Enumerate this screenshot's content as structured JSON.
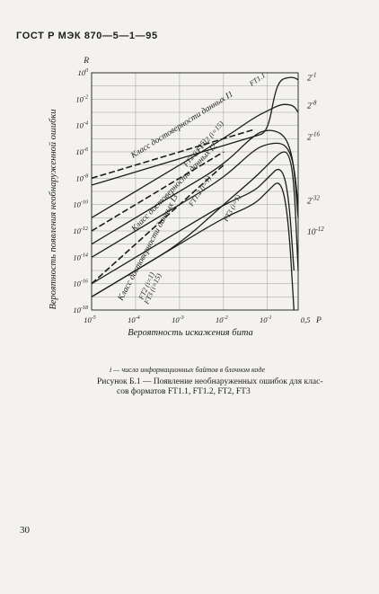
{
  "header": {
    "text": "ГОСТ Р МЭК 870—5—1—95"
  },
  "page_number": "30",
  "footnote": "i — число информационных байтов в блочном коде",
  "caption": {
    "line1": "Рисунок Б.1 — Появление необнаруженных ошибок для клас-",
    "line2": "сов форматов FT1.1, FT1.2, FT2, FT3"
  },
  "chart_data": {
    "type": "line",
    "xscale": "log",
    "yscale": "log",
    "xlabel": "Вероятность искажения бита",
    "xlabel_unit": "P",
    "ylabel": "Вероятность появления необнаруженной ошибки",
    "ylabel_unit": "R",
    "xlim": [
      1e-05,
      0.5
    ],
    "ylim": [
      1e-18,
      1
    ],
    "x_ticks": [
      {
        "label": "10",
        "exp": "-5"
      },
      {
        "label": "10",
        "exp": "-4"
      },
      {
        "label": "10",
        "exp": "-3"
      },
      {
        "label": "10",
        "exp": "-2"
      },
      {
        "label": "10",
        "exp": "-1"
      },
      {
        "label": "0,5",
        "exp": ""
      }
    ],
    "y_ticks": [
      {
        "label": "10",
        "exp": "0"
      },
      {
        "label": "10",
        "exp": "-2"
      },
      {
        "label": "10",
        "exp": "-4"
      },
      {
        "label": "10",
        "exp": "-6"
      },
      {
        "label": "10",
        "exp": "-8"
      },
      {
        "label": "10",
        "exp": "-10"
      },
      {
        "label": "10",
        "exp": "-12"
      },
      {
        "label": "10",
        "exp": "-14"
      },
      {
        "label": "10",
        "exp": "-16"
      },
      {
        "label": "10",
        "exp": "-18"
      }
    ],
    "right_labels": [
      {
        "label": "2",
        "exp": "-1",
        "y": 0.5
      },
      {
        "label": "2",
        "exp": "-8",
        "y": 0.0039
      },
      {
        "label": "2",
        "exp": "-16",
        "y": 1.53e-05
      },
      {
        "label": "2",
        "exp": "-32",
        "y": 2.3e-10
      },
      {
        "label": "10",
        "exp": "-12",
        "y": 1e-12
      }
    ],
    "series": [
      {
        "name": "Класс достоверности данных  I1",
        "style": "dashed",
        "x": [
          1e-05,
          0.0001,
          0.001,
          0.01,
          0.05
        ],
        "y": [
          1e-08,
          1e-07,
          1e-06,
          1e-05,
          5e-05
        ]
      },
      {
        "name": "Класс достоверности данных  I2",
        "style": "dashed",
        "x": [
          1e-05,
          0.0001,
          0.001,
          0.01
        ],
        "y": [
          1e-12,
          1e-10,
          1e-08,
          1e-06
        ]
      },
      {
        "name": "Класс достоверности данных  I3",
        "style": "dashed",
        "x": [
          1e-05,
          0.0001,
          0.001,
          0.01
        ],
        "y": [
          1e-16,
          1e-13,
          1e-10,
          1e-07
        ]
      },
      {
        "name": "FT1.1",
        "style": "solid",
        "x": [
          1e-05,
          0.0001,
          0.001,
          0.01,
          0.05,
          0.1,
          0.15,
          0.2,
          0.3,
          0.4,
          0.5
        ],
        "y": [
          3e-09,
          3e-08,
          3e-07,
          3e-06,
          1.5e-05,
          3e-05,
          0.04,
          0.3,
          0.45,
          0.45,
          0.3
        ]
      },
      {
        "name": "FT1.2 (i=15)",
        "style": "solid",
        "x": [
          1e-05,
          0.0001,
          0.001,
          0.01,
          0.05,
          0.1,
          0.2,
          0.3,
          0.4,
          0.5
        ],
        "y": [
          1e-11,
          1e-09,
          1e-07,
          1e-05,
          0.0004,
          0.0013,
          0.004,
          0.004,
          0.003,
          0.001
        ]
      },
      {
        "name": "FT2 (i=15)",
        "style": "solid",
        "x": [
          1e-05,
          0.0001,
          0.001,
          0.01,
          0.05,
          0.1,
          0.2,
          0.3,
          0.4,
          0.5
        ],
        "y": [
          1e-13,
          1e-11,
          1e-09,
          1e-07,
          2e-05,
          5e-05,
          3e-05,
          5e-06,
          1e-07,
          1e-11
        ]
      },
      {
        "name": "FT1.2 (i=1)",
        "style": "solid",
        "x": [
          1e-05,
          0.0001,
          0.001,
          0.01,
          0.05,
          0.1,
          0.2,
          0.3,
          0.4,
          0.5
        ],
        "y": [
          1e-14,
          1e-12,
          1e-10,
          1e-08,
          1.5e-06,
          4e-06,
          5e-06,
          1.8e-06,
          1e-07,
          1e-10
        ]
      },
      {
        "name": "FT3 (i=1)",
        "style": "solid",
        "x": [
          1e-05,
          0.0001,
          0.001,
          0.01,
          0.05,
          0.1,
          0.2,
          0.3,
          0.4,
          0.5
        ],
        "y": [
          1e-17,
          1e-15,
          1e-13,
          1e-10,
          1e-08,
          1e-07,
          1e-06,
          1e-06,
          1e-08,
          1e-15
        ]
      },
      {
        "name": "FT2 (i=1)",
        "style": "solid",
        "x": [
          1e-05,
          0.0001,
          0.001,
          0.01,
          0.05,
          0.1,
          0.2,
          0.3,
          0.4
        ],
        "y": [
          1e-16,
          1e-14,
          1e-12,
          1e-10,
          1e-09,
          1e-08,
          1e-07,
          1e-09,
          1e-15
        ]
      },
      {
        "name": "FT3 (i=15)",
        "style": "solid",
        "x": [
          1e-05,
          0.0001,
          0.001,
          0.01,
          0.05,
          0.1,
          0.2,
          0.3,
          0.4
        ],
        "y": [
          1e-17,
          1e-15,
          1e-13,
          1e-11,
          1e-10,
          1e-09,
          1e-08,
          1e-11,
          1e-18
        ]
      }
    ]
  }
}
